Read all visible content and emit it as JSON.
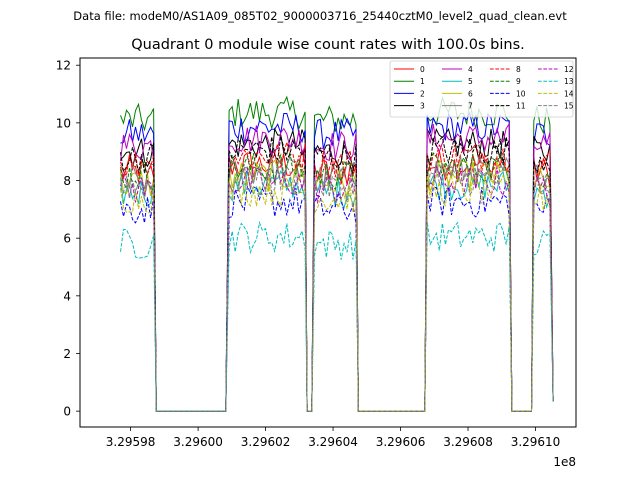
{
  "figure": {
    "suptitle": "Data file: modeM0/AS1A09_085T02_9000003716_25440cztM0_level2_quad_clean.evt",
    "title": "Quadrant 0 module wise count rates with 100.0s bins.",
    "offset_label": "1e8"
  },
  "chart_data": {
    "type": "line",
    "title": "Quadrant 0 module wise count rates with 100.0s bins.",
    "xlabel": "",
    "ylabel": "",
    "xlim": [
      3.295965,
      3.296112
    ],
    "ylim": [
      -0.55,
      12.25
    ],
    "x_offset_label": "1e8",
    "x_ticks": [
      3.29598,
      3.296,
      3.29602,
      3.29604,
      3.29606,
      3.29608,
      3.2961
    ],
    "x_tick_labels": [
      "3.29598",
      "3.29600",
      "3.29602",
      "3.29604",
      "3.29606",
      "3.29608",
      "3.29610"
    ],
    "y_ticks": [
      0,
      2,
      4,
      6,
      8,
      10,
      12
    ],
    "y_tick_labels": [
      "0",
      "2",
      "4",
      "6",
      "8",
      "10",
      "12"
    ],
    "grid": false,
    "legend_position": "top-right",
    "legend_columns": 4,
    "segments": [
      {
        "on": [
          3.295977,
          3.2959868
        ],
        "off": [
          3.2959876,
          3.2960082
        ]
      },
      {
        "on": [
          3.2960092,
          3.2960317
        ],
        "off": [
          3.2960323,
          3.2960337
        ]
      },
      {
        "on": [
          3.2960345,
          3.2960468
        ],
        "off": [
          3.2960475,
          3.2960672
        ]
      },
      {
        "on": [
          3.2960679,
          3.2960922
        ],
        "off": [
          3.296093,
          3.2960988
        ]
      },
      {
        "on": [
          3.2960995,
          3.2961052
        ],
        "off": []
      }
    ],
    "series": [
      {
        "name": "0",
        "level": 8.3,
        "color": "#ff0000",
        "dash": false
      },
      {
        "name": "1",
        "level": 10.1,
        "color": "#008000",
        "dash": false
      },
      {
        "name": "2",
        "level": 9.6,
        "color": "#0000ff",
        "dash": false
      },
      {
        "name": "3",
        "level": 9.0,
        "color": "#000000",
        "dash": false
      },
      {
        "name": "4",
        "level": 9.2,
        "color": "#bf00bf",
        "dash": false
      },
      {
        "name": "5",
        "level": 7.6,
        "color": "#00bfbf",
        "dash": false
      },
      {
        "name": "6",
        "level": 7.9,
        "color": "#bfbf00",
        "dash": false
      },
      {
        "name": "7",
        "level": 8.1,
        "color": "#808080",
        "dash": false
      },
      {
        "name": "8",
        "level": 8.6,
        "color": "#ff0000",
        "dash": true
      },
      {
        "name": "9",
        "level": 8.2,
        "color": "#008000",
        "dash": true
      },
      {
        "name": "10",
        "level": 7.0,
        "color": "#0000ff",
        "dash": true
      },
      {
        "name": "11",
        "level": 8.8,
        "color": "#000000",
        "dash": true
      },
      {
        "name": "12",
        "level": 7.7,
        "color": "#bf00bf",
        "dash": true
      },
      {
        "name": "13",
        "level": 5.8,
        "color": "#00bfbf",
        "dash": true
      },
      {
        "name": "14",
        "level": 7.4,
        "color": "#bfbf00",
        "dash": true
      },
      {
        "name": "15",
        "level": 7.8,
        "color": "#808080",
        "dash": true
      }
    ]
  }
}
